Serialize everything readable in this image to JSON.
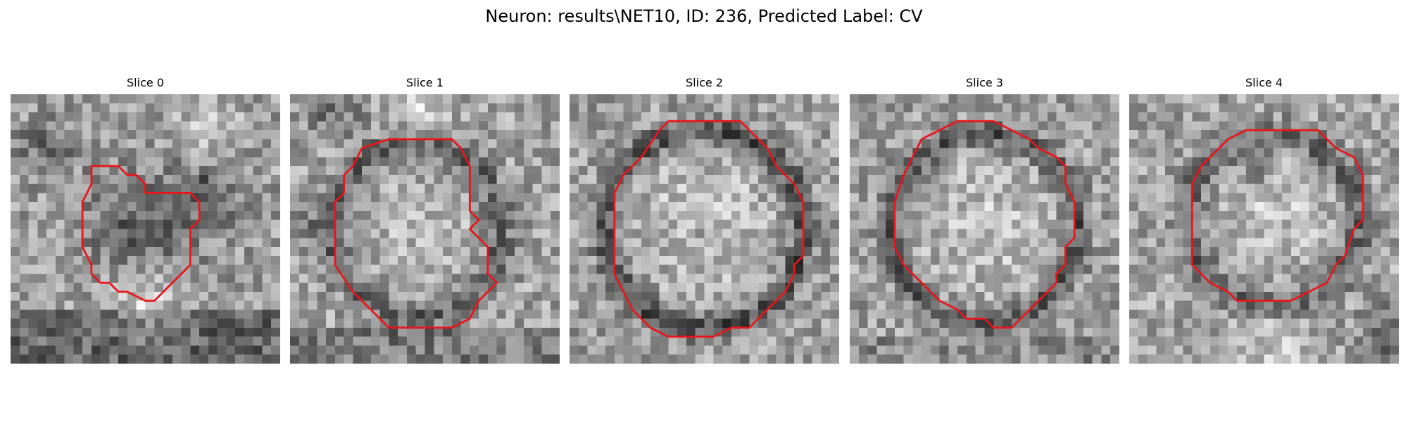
{
  "figure": {
    "suptitle": "Neuron: results\\NET10, ID: 236, Predicted Label: CV",
    "contour_color": "#e8161b",
    "grid_size": 30
  },
  "panels": [
    {
      "title": "Slice 0",
      "contour": [
        [
          9,
          8
        ],
        [
          12,
          8
        ],
        [
          13,
          9
        ],
        [
          14,
          9
        ],
        [
          15,
          10
        ],
        [
          15,
          11
        ],
        [
          20,
          11
        ],
        [
          21,
          12
        ],
        [
          21,
          14
        ],
        [
          20,
          15
        ],
        [
          20,
          19
        ],
        [
          19,
          20
        ],
        [
          18,
          21
        ],
        [
          17,
          22
        ],
        [
          16,
          23
        ],
        [
          15,
          23
        ],
        [
          13,
          22
        ],
        [
          12,
          22
        ],
        [
          11,
          21
        ],
        [
          10,
          21
        ],
        [
          9,
          20
        ],
        [
          9,
          19
        ],
        [
          8,
          17
        ],
        [
          8,
          12
        ],
        [
          9,
          10
        ]
      ],
      "blobs": [
        {
          "cx": 15,
          "cy": 15,
          "r": 6.5,
          "amp": -0.22
        },
        {
          "cx": 15,
          "cy": 15,
          "r": 2.5,
          "amp": -0.06
        },
        {
          "cx": 22,
          "cy": 11,
          "r": 3,
          "amp": -0.25
        },
        {
          "cx": 4,
          "cy": 6,
          "r": 3,
          "amp": -0.2
        },
        {
          "cx": 15,
          "cy": 23,
          "r": 4,
          "amp": 0.22
        },
        {
          "cx": 22,
          "cy": 3,
          "r": 3,
          "amp": 0.18
        }
      ],
      "bands": [
        {
          "y0": 24,
          "y1": 30,
          "amp": -0.22
        }
      ],
      "base": 0.62,
      "seed": 11
    },
    {
      "title": "Slice 1",
      "contour": [
        [
          8,
          6
        ],
        [
          11,
          5
        ],
        [
          18,
          5
        ],
        [
          19,
          6
        ],
        [
          20,
          8
        ],
        [
          20,
          13
        ],
        [
          21,
          14
        ],
        [
          20,
          15
        ],
        [
          22,
          17
        ],
        [
          22,
          20
        ],
        [
          23,
          21
        ],
        [
          22,
          22
        ],
        [
          21,
          23
        ],
        [
          20,
          25
        ],
        [
          18,
          26
        ],
        [
          16,
          26
        ],
        [
          11,
          26
        ],
        [
          10,
          25
        ],
        [
          8,
          23
        ],
        [
          7,
          22
        ],
        [
          5,
          19
        ],
        [
          5,
          12
        ],
        [
          6,
          11
        ],
        [
          6,
          9
        ],
        [
          7,
          8
        ]
      ],
      "blobs": [
        {
          "cx": 14,
          "cy": 15,
          "r": 11,
          "amp": -0.25,
          "ring": 9.5,
          "width": 1.6
        },
        {
          "cx": 14,
          "cy": 15,
          "r": 6,
          "amp": 0.08
        },
        {
          "cx": 5,
          "cy": 2,
          "r": 3,
          "amp": -0.2
        },
        {
          "cx": 14,
          "cy": 1,
          "r": 3,
          "amp": 0.18
        },
        {
          "cx": 2,
          "cy": 15,
          "r": 2,
          "amp": -0.15
        }
      ],
      "bands": [
        {
          "y0": 26,
          "y1": 30,
          "amp": -0.15
        }
      ],
      "base": 0.64,
      "seed": 23
    },
    {
      "title": "Slice 2",
      "contour": [
        [
          10,
          4
        ],
        [
          11,
          3
        ],
        [
          19,
          3
        ],
        [
          21,
          5
        ],
        [
          22,
          6
        ],
        [
          23,
          8
        ],
        [
          25,
          10
        ],
        [
          26,
          12
        ],
        [
          26,
          18
        ],
        [
          25,
          19
        ],
        [
          25,
          20
        ],
        [
          24,
          22
        ],
        [
          22,
          24
        ],
        [
          20,
          26
        ],
        [
          18,
          26
        ],
        [
          16,
          27
        ],
        [
          15,
          27
        ],
        [
          11,
          27
        ],
        [
          9,
          26
        ],
        [
          8,
          25
        ],
        [
          7,
          24
        ],
        [
          5,
          20
        ],
        [
          5,
          11
        ],
        [
          6,
          9
        ],
        [
          8,
          7
        ]
      ],
      "blobs": [
        {
          "cx": 15,
          "cy": 15,
          "r": 13,
          "amp": -0.32,
          "ring": 11,
          "width": 1.5
        },
        {
          "cx": 15,
          "cy": 14,
          "r": 8,
          "amp": 0.15
        },
        {
          "cx": 15,
          "cy": 15,
          "r": 2.5,
          "amp": -0.1
        }
      ],
      "bands": [],
      "base": 0.62,
      "seed": 37
    },
    {
      "title": "Slice 3",
      "contour": [
        [
          8,
          5
        ],
        [
          10,
          4
        ],
        [
          12,
          3
        ],
        [
          14,
          3
        ],
        [
          16,
          3
        ],
        [
          18,
          4
        ],
        [
          20,
          5
        ],
        [
          21,
          6
        ],
        [
          23,
          7
        ],
        [
          24,
          8
        ],
        [
          24,
          10
        ],
        [
          25,
          12
        ],
        [
          25,
          16
        ],
        [
          24,
          17
        ],
        [
          24,
          19
        ],
        [
          23,
          20
        ],
        [
          23,
          21
        ],
        [
          22,
          22
        ],
        [
          20,
          24
        ],
        [
          18,
          26
        ],
        [
          16,
          26
        ],
        [
          15,
          25
        ],
        [
          13,
          25
        ],
        [
          12,
          24
        ],
        [
          10,
          23
        ],
        [
          9,
          22
        ],
        [
          8,
          21
        ],
        [
          7,
          20
        ],
        [
          6,
          19
        ],
        [
          5,
          17
        ],
        [
          5,
          12
        ],
        [
          6,
          9
        ],
        [
          7,
          7
        ]
      ],
      "blobs": [
        {
          "cx": 15,
          "cy": 15,
          "r": 13,
          "amp": -0.3,
          "ring": 10.5,
          "width": 1.4
        },
        {
          "cx": 15,
          "cy": 15,
          "r": 8,
          "amp": 0.14
        }
      ],
      "bands": [
        {
          "y0": 27,
          "y1": 30,
          "amp": -0.08
        }
      ],
      "base": 0.62,
      "seed": 53
    },
    {
      "title": "Slice 4",
      "contour": [
        [
          11,
          5
        ],
        [
          13,
          4
        ],
        [
          21,
          4
        ],
        [
          22,
          5
        ],
        [
          23,
          6
        ],
        [
          25,
          7
        ],
        [
          26,
          9
        ],
        [
          26,
          14
        ],
        [
          25,
          15
        ],
        [
          24,
          18
        ],
        [
          23,
          19
        ],
        [
          22,
          21
        ],
        [
          20,
          22
        ],
        [
          18,
          23
        ],
        [
          12,
          23
        ],
        [
          11,
          22
        ],
        [
          9,
          21
        ],
        [
          8,
          20
        ],
        [
          7,
          19
        ],
        [
          7,
          10
        ],
        [
          8,
          8
        ]
      ],
      "blobs": [
        {
          "cx": 16,
          "cy": 14,
          "r": 12,
          "amp": -0.26,
          "ring": 9.5,
          "width": 1.6
        },
        {
          "cx": 16,
          "cy": 13,
          "r": 6,
          "amp": 0.12
        },
        {
          "cx": 14,
          "cy": 8,
          "r": 1.5,
          "amp": -0.3
        },
        {
          "cx": 29,
          "cy": 27,
          "r": 3,
          "amp": -0.3
        },
        {
          "cx": 16,
          "cy": 28,
          "r": 4,
          "amp": 0.15
        }
      ],
      "bands": [],
      "base": 0.64,
      "seed": 71
    }
  ]
}
